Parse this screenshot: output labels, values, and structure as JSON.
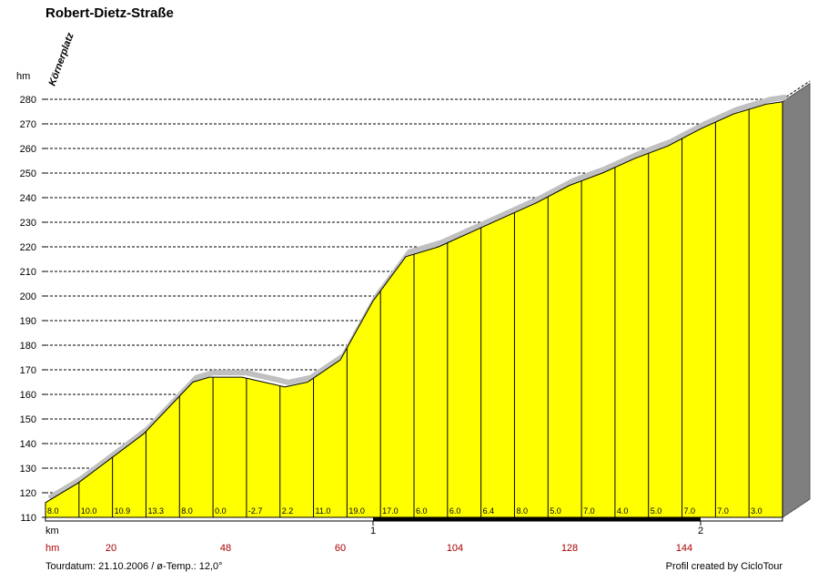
{
  "chart_data": {
    "type": "area",
    "title": "Robert-Dietz-Straße",
    "y_unit": "hm",
    "x_unit": "km",
    "hm_row_label": "hm",
    "location_label": "Körnerplatz",
    "ylim": [
      110,
      280
    ],
    "y_ticks": [
      110,
      120,
      130,
      140,
      150,
      160,
      170,
      180,
      190,
      200,
      210,
      220,
      230,
      240,
      250,
      260,
      270,
      280
    ],
    "xlim": [
      0,
      2.25
    ],
    "x_ticks": [
      {
        "value": 1,
        "label": "1"
      },
      {
        "value": 2,
        "label": "2"
      }
    ],
    "grid": true,
    "profile": [
      {
        "x": 0.0,
        "y": 116
      },
      {
        "x": 0.1,
        "y": 124
      },
      {
        "x": 0.2,
        "y": 134
      },
      {
        "x": 0.3,
        "y": 144
      },
      {
        "x": 0.4,
        "y": 158
      },
      {
        "x": 0.45,
        "y": 165
      },
      {
        "x": 0.5,
        "y": 167
      },
      {
        "x": 0.6,
        "y": 167
      },
      {
        "x": 0.7,
        "y": 164
      },
      {
        "x": 0.73,
        "y": 163
      },
      {
        "x": 0.8,
        "y": 165
      },
      {
        "x": 0.9,
        "y": 174
      },
      {
        "x": 1.0,
        "y": 198
      },
      {
        "x": 1.1,
        "y": 216
      },
      {
        "x": 1.2,
        "y": 220
      },
      {
        "x": 1.3,
        "y": 226
      },
      {
        "x": 1.4,
        "y": 232
      },
      {
        "x": 1.5,
        "y": 238
      },
      {
        "x": 1.6,
        "y": 245
      },
      {
        "x": 1.7,
        "y": 250
      },
      {
        "x": 1.8,
        "y": 256
      },
      {
        "x": 1.9,
        "y": 261
      },
      {
        "x": 2.0,
        "y": 268
      },
      {
        "x": 2.1,
        "y": 274
      },
      {
        "x": 2.2,
        "y": 278
      },
      {
        "x": 2.25,
        "y": 279
      }
    ],
    "segment_gradients": [
      "8.0",
      "10.0",
      "10.9",
      "13.3",
      "8.0",
      "0.0",
      "-2.7",
      "2.2",
      "11.0",
      "19.0",
      "17.0",
      "6.0",
      "6.0",
      "6.4",
      "8.0",
      "5.0",
      "7.0",
      "4.0",
      "5.0",
      "7.0",
      "7.0",
      "3.0"
    ],
    "hm_markers": [
      {
        "x": 0.2,
        "label": "20"
      },
      {
        "x": 0.55,
        "label": "48"
      },
      {
        "x": 0.9,
        "label": "60"
      },
      {
        "x": 1.25,
        "label": "104"
      },
      {
        "x": 1.6,
        "label": "128"
      },
      {
        "x": 1.95,
        "label": "144"
      }
    ]
  },
  "footer": {
    "tour_info": "Tourdatum: 21.10.2006  /  ø-Temp.: 12,0°",
    "credit": "Profil created by CicloTour"
  },
  "colors": {
    "fill": "#ffff00",
    "shadow": "#c0c0c0",
    "hm_text": "#aa0000",
    "side_face": "#7f7f7f"
  }
}
